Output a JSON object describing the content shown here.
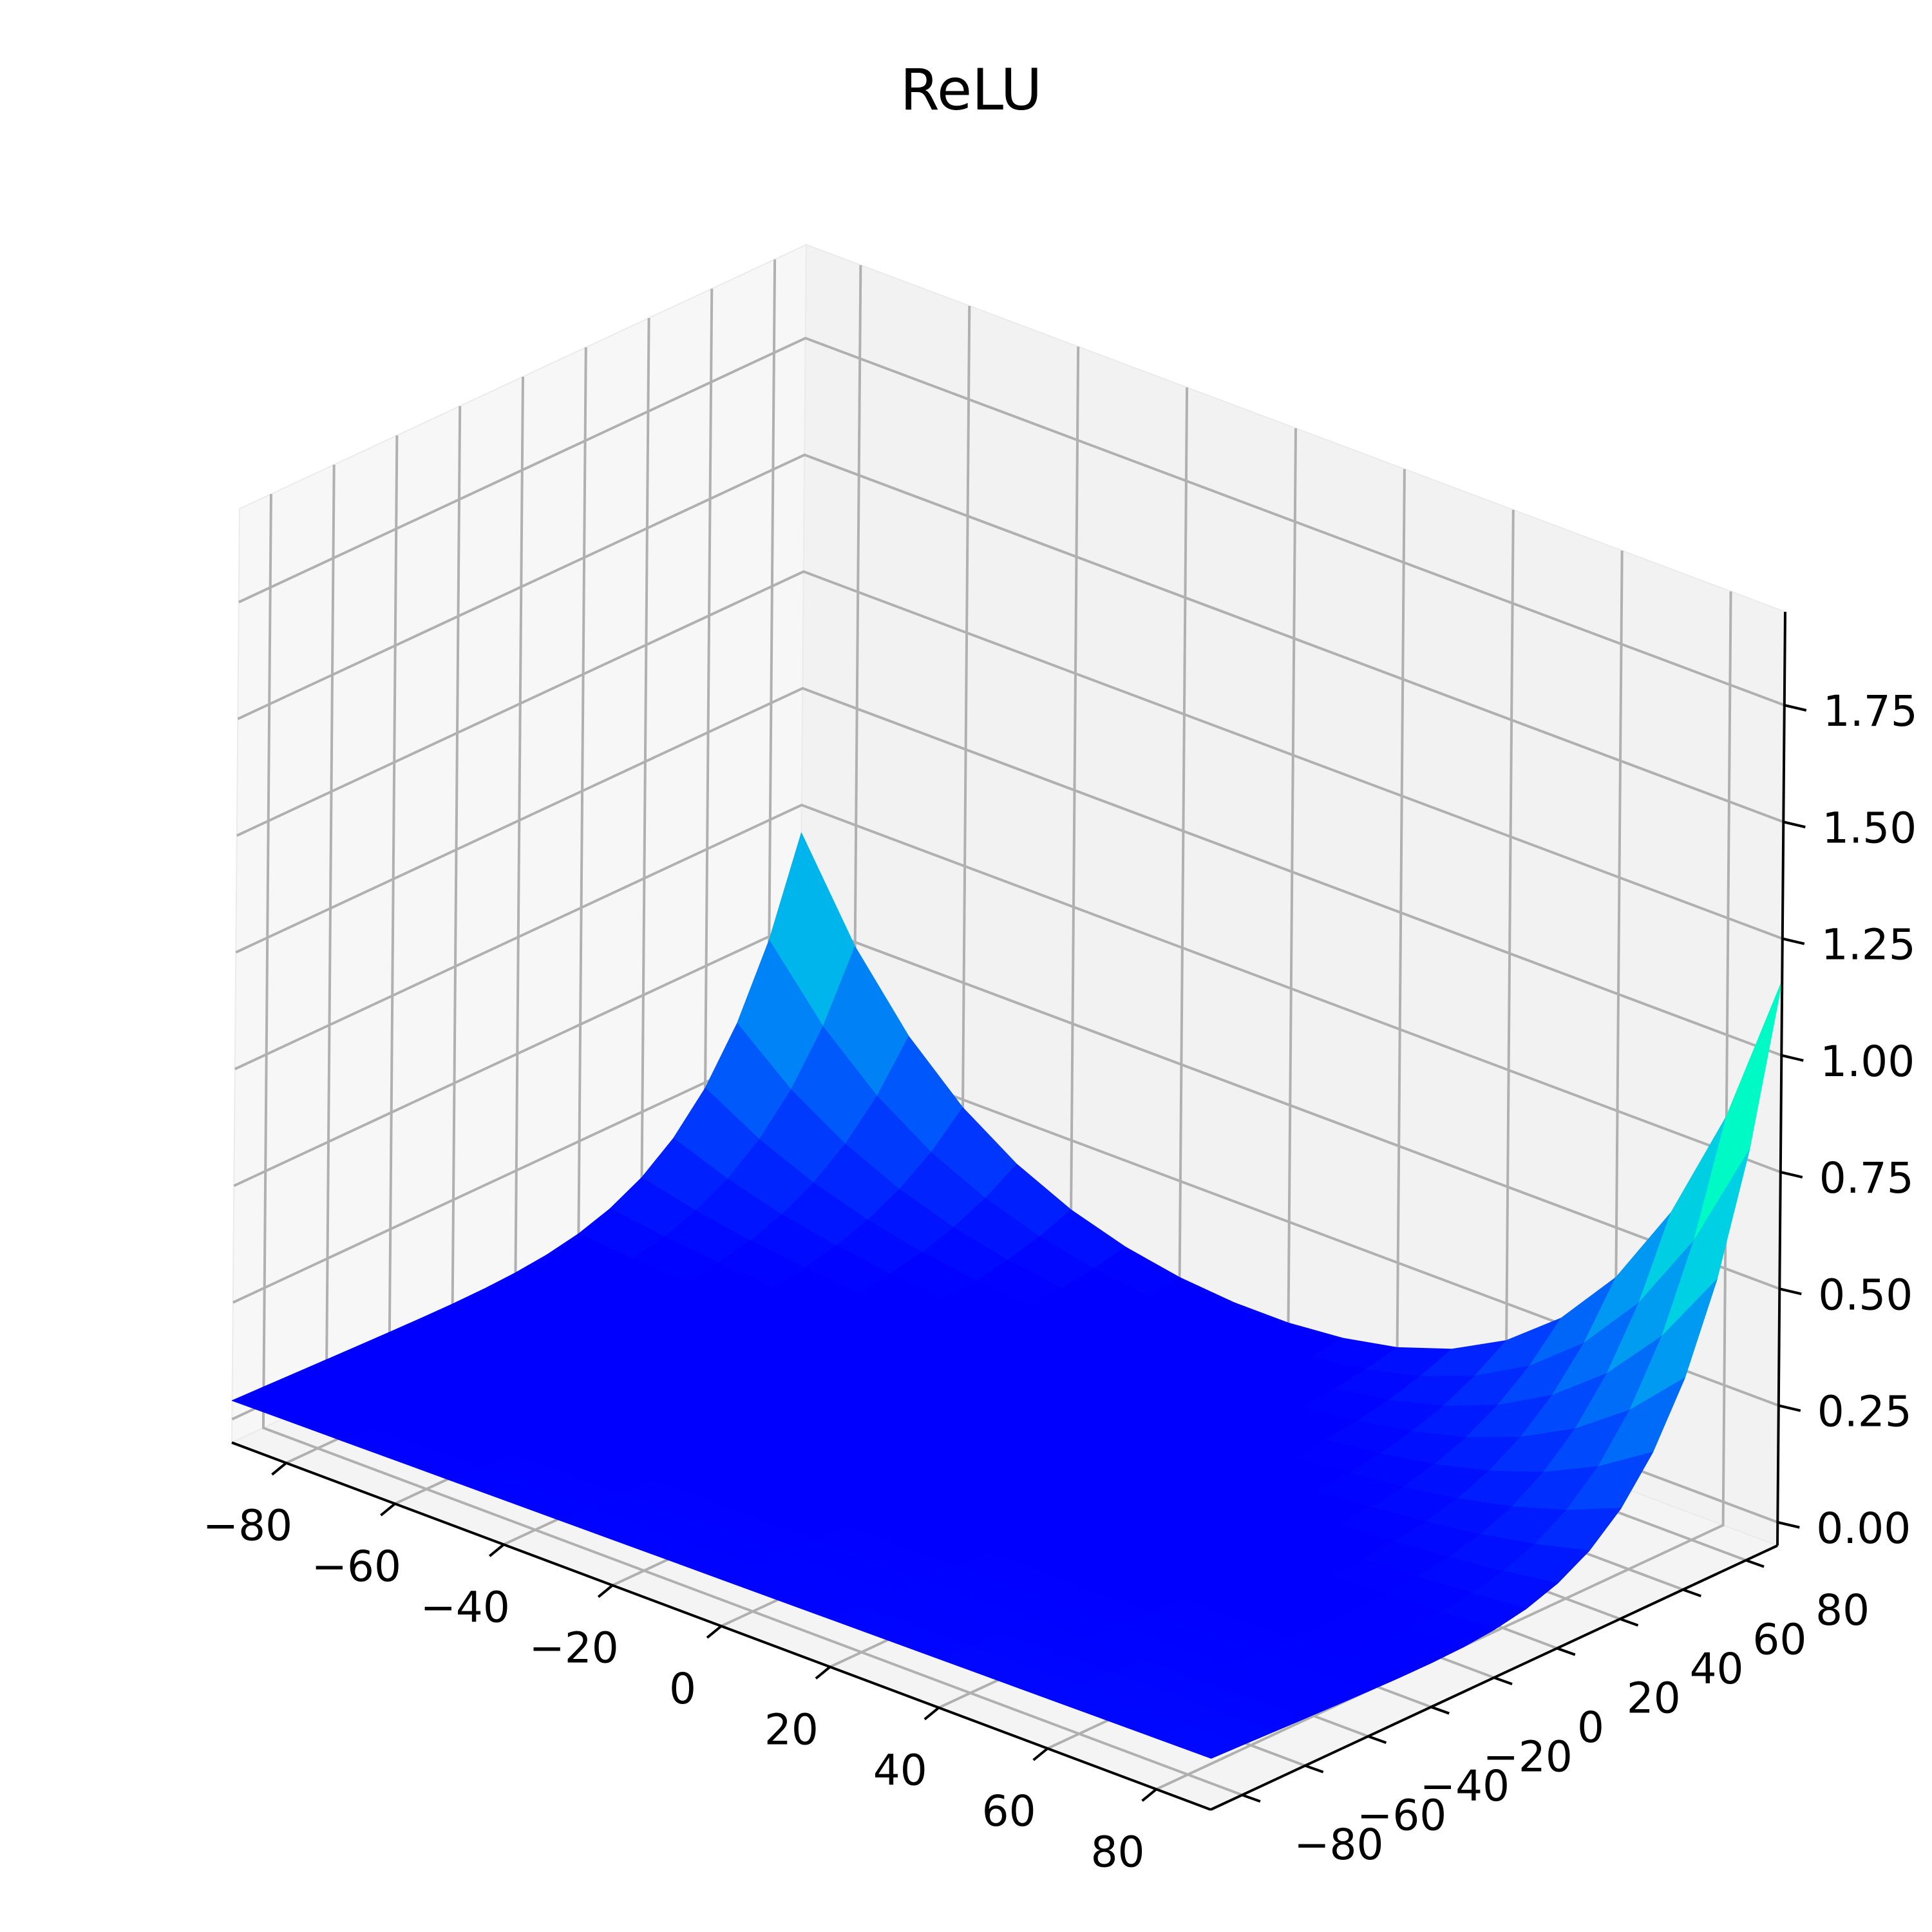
{
  "chart_data": {
    "type": "surface",
    "title": "ReLU",
    "xlabel": "",
    "ylabel": "",
    "zlabel": "",
    "x_ticks": [
      "−80",
      "−60",
      "−40",
      "−20",
      "0",
      "20",
      "40",
      "60",
      "80"
    ],
    "y_ticks": [
      "−80",
      "−60",
      "−40",
      "−20",
      "0",
      "20",
      "40",
      "60",
      "80"
    ],
    "z_ticks": [
      "0.00",
      "0.25",
      "0.50",
      "0.75",
      "1.00",
      "1.25",
      "1.50",
      "1.75"
    ],
    "xlim": [
      -90,
      90
    ],
    "ylim": [
      -90,
      90
    ],
    "zlim": [
      -0.05,
      1.95
    ],
    "grid": true,
    "colormap": "rainbow",
    "x": [
      -90,
      -80,
      -70,
      -60,
      -50,
      -40,
      -30,
      -20,
      -10,
      0,
      10,
      20,
      30,
      40,
      50,
      60,
      70,
      80,
      90
    ],
    "y": [
      -90,
      -80,
      -70,
      -60,
      -50,
      -40,
      -30,
      -20,
      -10,
      0,
      10,
      20,
      30,
      40,
      50,
      60,
      70,
      80,
      90
    ],
    "corner_values": {
      "x_min_y_min": 0.04,
      "x_max_y_min": 0.06,
      "x_min_y_max": 0.73,
      "x_max_y_max": 1.9
    },
    "colors": {
      "pane_left": "#f7f7f7",
      "pane_back": "#f2f2f2",
      "pane_floor": "#f4f4f4",
      "grid": "#b0b0b0",
      "axis": "#000000"
    }
  }
}
